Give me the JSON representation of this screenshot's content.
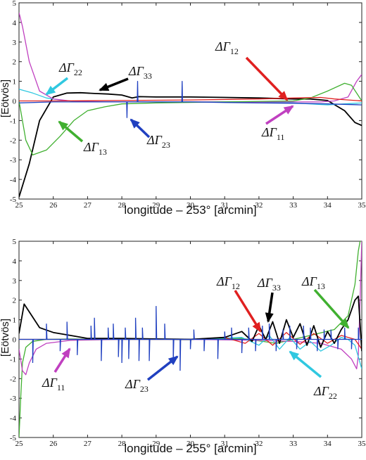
{
  "chart_data": [
    {
      "type": "line",
      "xlabel": "longitude – 253° [arcmin]",
      "ylabel": "[Eötvös]",
      "xlim": [
        25,
        35
      ],
      "ylim": [
        -5,
        5
      ],
      "xticks": [
        25,
        26,
        27,
        28,
        29,
        30,
        31,
        32,
        33,
        34,
        35
      ],
      "yticks": [
        5,
        4,
        3,
        2,
        1,
        0,
        -1,
        -2,
        -3,
        -4,
        -5
      ],
      "colors": {
        "ΔΓ11": "#c040c0",
        "ΔΓ12": "#e02020",
        "ΔΓ13": "#40b030",
        "ΔΓ22": "#30c8e0",
        "ΔΓ23": "#2040c0",
        "ΔΓ33": "#000000"
      },
      "series": [
        {
          "name": "ΔΓ33",
          "x": [
            25.0,
            25.3,
            25.6,
            26.0,
            26.4,
            26.8,
            27.2,
            27.6,
            28.0,
            28.3,
            28.5,
            29.0,
            30.0,
            31.0,
            32.0,
            33.0,
            33.5,
            34.0,
            34.5,
            34.8,
            35.0
          ],
          "y": [
            -4.9,
            -3.2,
            -1.0,
            0.2,
            0.4,
            0.42,
            0.38,
            0.35,
            0.3,
            0.15,
            0.22,
            0.2,
            0.2,
            0.18,
            0.15,
            0.1,
            0.1,
            0.02,
            -0.5,
            -1.1,
            -1.25
          ]
        },
        {
          "name": "ΔΓ22",
          "x": [
            25.0,
            25.4,
            25.8,
            26.2,
            26.6,
            27.0,
            28.0,
            30.0,
            32.0,
            33.0,
            33.5,
            34.0,
            34.5,
            35.0
          ],
          "y": [
            0.6,
            0.4,
            0.15,
            0.05,
            -0.02,
            -0.05,
            -0.05,
            -0.05,
            -0.05,
            -0.1,
            -0.15,
            -0.2,
            -0.15,
            -0.1
          ]
        },
        {
          "name": "ΔΓ11",
          "x": [
            25.0,
            25.1,
            25.3,
            25.6,
            26.0,
            26.5,
            27.5,
            29.0,
            31.0,
            33.0,
            33.8,
            34.2,
            34.6,
            34.85,
            35.0
          ],
          "y": [
            4.5,
            3.8,
            2.0,
            0.5,
            0.1,
            0.0,
            -0.05,
            -0.05,
            -0.05,
            -0.05,
            -0.05,
            0.0,
            0.2,
            1.0,
            1.35
          ]
        },
        {
          "name": "ΔΓ13",
          "x": [
            25.0,
            25.2,
            25.4,
            25.8,
            26.2,
            26.6,
            27.0,
            27.5,
            28.0,
            29.0,
            31.0,
            33.0,
            33.5,
            34.0,
            34.5,
            34.7,
            35.0
          ],
          "y": [
            0.0,
            -2.0,
            -2.75,
            -2.5,
            -1.8,
            -1.0,
            -0.5,
            -0.3,
            -0.15,
            -0.1,
            -0.05,
            0.0,
            0.15,
            0.5,
            0.9,
            0.8,
            0.0
          ]
        },
        {
          "name": "ΔΓ12",
          "x": [
            25.0,
            26.0,
            28.0,
            30.0,
            32.0,
            33.0,
            33.8,
            34.2,
            34.6,
            35.0
          ],
          "y": [
            0.0,
            0.0,
            0.02,
            0.05,
            0.1,
            0.15,
            0.18,
            0.1,
            0.05,
            0.0
          ]
        },
        {
          "name": "ΔΓ23",
          "x": [
            25.0,
            26.0,
            27.0,
            28.0,
            28.14,
            28.15,
            28.16,
            28.3,
            28.45,
            28.46,
            28.47,
            28.6,
            29.75,
            29.76,
            29.77,
            30.0,
            31.0,
            32.0,
            33.0,
            34.0,
            35.0
          ],
          "y": [
            -0.1,
            -0.05,
            -0.05,
            -0.05,
            -0.05,
            -0.85,
            -0.05,
            -0.05,
            -0.05,
            1.0,
            -0.05,
            -0.05,
            -0.05,
            1.0,
            -0.05,
            -0.05,
            -0.08,
            -0.1,
            -0.12,
            -0.15,
            -0.2
          ]
        }
      ],
      "annotations": [
        {
          "sym": "ΔΓ",
          "sub": "22",
          "series": "ΔΓ22"
        },
        {
          "sym": "ΔΓ",
          "sub": "33",
          "series": "ΔΓ33"
        },
        {
          "sym": "ΔΓ",
          "sub": "12",
          "series": "ΔΓ12"
        },
        {
          "sym": "ΔΓ",
          "sub": "13",
          "series": "ΔΓ13"
        },
        {
          "sym": "ΔΓ",
          "sub": "23",
          "series": "ΔΓ23"
        },
        {
          "sym": "ΔΓ",
          "sub": "11",
          "series": "ΔΓ11"
        }
      ]
    },
    {
      "type": "line",
      "xlabel": "longitude – 255° [arcmin]",
      "ylabel": "[Eötvös]",
      "xlim": [
        25,
        35
      ],
      "ylim": [
        -5,
        5
      ],
      "xticks": [
        25,
        26,
        27,
        28,
        29,
        30,
        31,
        32,
        33,
        34,
        35
      ],
      "yticks": [
        5,
        4,
        3,
        2,
        1,
        0,
        -1,
        -2,
        -3,
        -4,
        -5
      ],
      "colors": {
        "ΔΓ11": "#c040c0",
        "ΔΓ12": "#e02020",
        "ΔΓ13": "#40b030",
        "ΔΓ22": "#30c8e0",
        "ΔΓ23": "#2040c0",
        "ΔΓ33": "#000000"
      },
      "series": [
        {
          "name": "ΔΓ13",
          "x": [
            25.0,
            25.05,
            25.1,
            25.2,
            25.4,
            25.8,
            26.5,
            28.0,
            30.0,
            31.5,
            32.5,
            33.5,
            34.2,
            34.6,
            34.8,
            34.9,
            34.95,
            35.0
          ],
          "y": [
            -5.0,
            -3.0,
            -1.2,
            -0.4,
            -0.1,
            0.0,
            0.02,
            0.0,
            0.0,
            0.05,
            -0.2,
            0.2,
            0.5,
            1.2,
            2.8,
            4.5,
            5.0,
            5.0
          ]
        },
        {
          "name": "ΔΓ11",
          "x": [
            25.0,
            25.1,
            25.2,
            25.3,
            25.5,
            25.8,
            26.5,
            28.0,
            30.0,
            32.0,
            33.0,
            33.8,
            34.4,
            34.7,
            34.85,
            34.9,
            34.95,
            35.0
          ],
          "y": [
            -0.5,
            -1.6,
            -1.8,
            -1.2,
            -0.5,
            -0.2,
            -0.05,
            0.0,
            0.0,
            -0.05,
            -0.1,
            -0.2,
            -0.5,
            -1.0,
            -1.5,
            -0.8,
            2.0,
            5.0
          ]
        },
        {
          "name": "ΔΓ22",
          "x": [
            25.0,
            26.0,
            28.0,
            30.0,
            31.5,
            32.0,
            32.3,
            32.6,
            32.9,
            33.2,
            33.5,
            33.8,
            34.1,
            34.4,
            34.6,
            34.8,
            35.0
          ],
          "y": [
            0.0,
            0.0,
            0.0,
            0.0,
            0.1,
            -0.3,
            0.2,
            -0.5,
            0.1,
            -0.5,
            -0.1,
            -0.6,
            -0.3,
            0.1,
            0.0,
            -0.3,
            -1.5
          ]
        },
        {
          "name": "ΔΓ12",
          "x": [
            25.0,
            26.0,
            28.0,
            30.0,
            31.0,
            31.6,
            32.0,
            32.4,
            32.8,
            33.2,
            33.6,
            34.0,
            34.4,
            34.8,
            35.0
          ],
          "y": [
            0.0,
            0.0,
            0.0,
            0.0,
            0.1,
            -0.2,
            0.3,
            -0.3,
            0.35,
            -0.25,
            0.3,
            -0.2,
            0.2,
            0.0,
            -0.5
          ]
        },
        {
          "name": "ΔΓ33",
          "x": [
            25.0,
            25.15,
            25.3,
            25.6,
            26.0,
            26.5,
            27.0,
            28.0,
            29.0,
            30.0,
            31.0,
            31.5,
            31.8,
            32.0,
            32.2,
            32.4,
            32.6,
            32.8,
            33.0,
            33.2,
            33.4,
            33.6,
            33.8,
            34.0,
            34.2,
            34.4,
            34.6,
            34.8,
            34.9,
            35.0
          ],
          "y": [
            0.3,
            1.8,
            1.4,
            0.6,
            0.35,
            0.2,
            0.05,
            0.05,
            0.02,
            0.0,
            0.1,
            0.4,
            -0.1,
            0.7,
            0.0,
            0.9,
            -0.2,
            1.0,
            0.1,
            0.8,
            -0.3,
            0.7,
            -0.4,
            0.4,
            -0.2,
            0.5,
            1.0,
            2.0,
            2.2,
            -0.6
          ]
        },
        {
          "name": "ΔΓ23",
          "spikes": [
            25.4,
            25.8,
            26.2,
            26.4,
            26.7,
            27.1,
            27.2,
            27.4,
            27.6,
            27.75,
            27.9,
            28.0,
            28.1,
            28.2,
            28.4,
            28.5,
            28.6,
            28.8,
            29.0,
            29.25,
            29.5,
            29.7,
            30.0,
            30.1,
            30.4,
            30.8,
            31.0,
            31.2,
            31.5,
            31.7,
            31.9,
            32.1,
            32.3,
            32.5,
            32.7,
            32.9,
            33.1,
            33.3,
            33.5,
            33.7,
            33.9,
            34.1,
            34.3,
            34.5,
            34.7,
            34.9
          ],
          "spike_values": [
            -1.2,
            0.8,
            -0.6,
            0.9,
            -0.8,
            0.7,
            1.1,
            -1.1,
            0.6,
            0.8,
            -0.9,
            -1.2,
            0.6,
            -1.0,
            1.1,
            -1.1,
            0.6,
            -1.1,
            1.7,
            0.8,
            -1.1,
            -1.6,
            -0.5,
            0.5,
            -0.6,
            -1.0,
            0.4,
            0.6,
            -0.7,
            0.6,
            -0.6,
            0.7,
            0.8,
            -0.6,
            0.5,
            0.7,
            -0.5,
            0.7,
            0.6,
            -0.6,
            0.5,
            0.5,
            -0.5,
            0.6,
            -0.5,
            0.6
          ]
        }
      ],
      "annotations": [
        {
          "sym": "ΔΓ",
          "sub": "12",
          "series": "ΔΓ12"
        },
        {
          "sym": "ΔΓ",
          "sub": "33",
          "series": "ΔΓ33"
        },
        {
          "sym": "ΔΓ",
          "sub": "13",
          "series": "ΔΓ13"
        },
        {
          "sym": "ΔΓ",
          "sub": "11",
          "series": "ΔΓ11"
        },
        {
          "sym": "ΔΓ",
          "sub": "23",
          "series": "ΔΓ23"
        },
        {
          "sym": "ΔΓ",
          "sub": "22",
          "series": "ΔΓ22"
        }
      ]
    }
  ]
}
